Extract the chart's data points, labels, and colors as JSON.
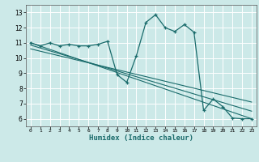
{
  "title": "",
  "xlabel": "Humidex (Indice chaleur)",
  "ylabel": "",
  "bg_color": "#cce9e8",
  "grid_color": "#ffffff",
  "line_color": "#1a6b6b",
  "xlim": [
    -0.5,
    23.5
  ],
  "ylim": [
    5.5,
    13.5
  ],
  "xticks": [
    0,
    1,
    2,
    3,
    4,
    5,
    6,
    7,
    8,
    9,
    10,
    11,
    12,
    13,
    14,
    15,
    16,
    17,
    18,
    19,
    20,
    21,
    22,
    23
  ],
  "yticks": [
    6,
    7,
    8,
    9,
    10,
    11,
    12,
    13
  ],
  "curve_x": [
    0,
    1,
    2,
    3,
    4,
    5,
    6,
    7,
    8,
    9,
    10,
    11,
    12,
    13,
    14,
    15,
    16,
    17,
    18,
    19,
    20,
    21,
    22,
    23
  ],
  "curve_y": [
    11.0,
    10.8,
    11.0,
    10.8,
    10.9,
    10.8,
    10.8,
    10.9,
    11.1,
    8.9,
    8.4,
    10.15,
    12.35,
    12.85,
    12.0,
    11.75,
    12.2,
    11.7,
    6.55,
    7.3,
    6.8,
    6.05,
    6.0,
    6.0
  ],
  "line1_x": [
    0,
    23
  ],
  "line1_y": [
    11.0,
    6.0
  ],
  "line2_x": [
    0,
    23
  ],
  "line2_y": [
    10.85,
    6.5
  ],
  "line3_x": [
    0,
    23
  ],
  "line3_y": [
    10.6,
    7.1
  ]
}
